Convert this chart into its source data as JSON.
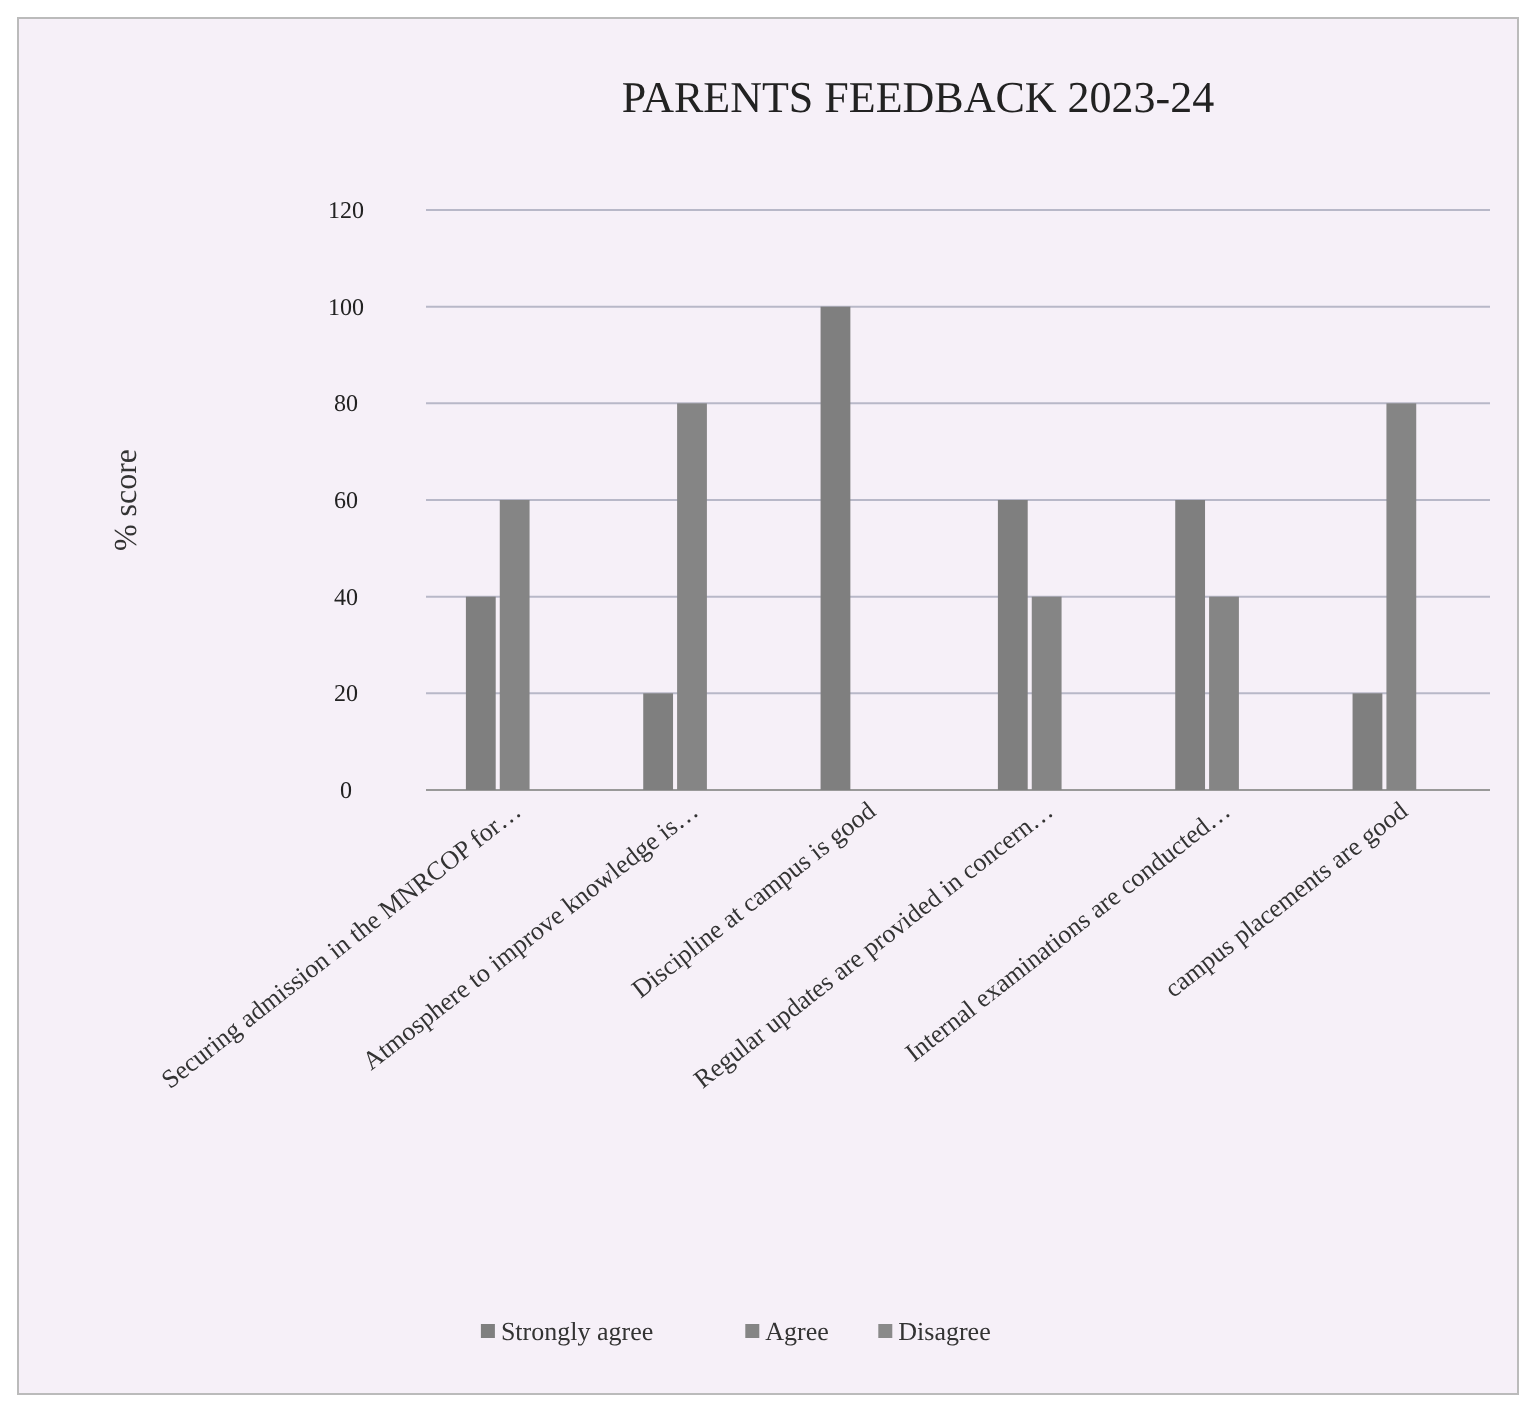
{
  "chart_data": {
    "type": "bar",
    "title": "PARENTS FEEDBACK 2023-24",
    "ylabel": "% score",
    "categories": [
      "Securing admission in the MNRCOP for…",
      "Atmosphere to improve knowledge is…",
      "Discipline at campus is good",
      "Regular updates are provided in concern…",
      "Internal examinations are conducted…",
      "campus placements are good"
    ],
    "series": [
      {
        "name": "Strongly agree",
        "color": "#7f7f7f",
        "values": [
          40,
          20,
          100,
          60,
          60,
          20
        ]
      },
      {
        "name": "Agree",
        "color": "#858585",
        "values": [
          60,
          80,
          0,
          40,
          40,
          80
        ]
      },
      {
        "name": "Disagree",
        "color": "#8a8a8a",
        "values": [
          0,
          0,
          0,
          0,
          0,
          0
        ]
      }
    ],
    "ylim": [
      0,
      120
    ],
    "yticks": [
      0,
      20,
      40,
      60,
      80,
      100,
      120
    ],
    "grid": "y",
    "legend": "bottom"
  }
}
